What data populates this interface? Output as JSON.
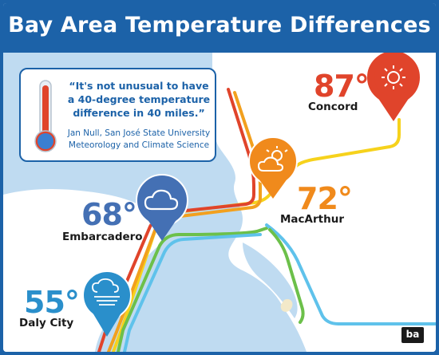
{
  "title": "Bay Area Temperature Differences",
  "quote": {
    "text": "“It's not unusual to have a 40-degree temperature difference in 40 miles.”",
    "source_line1": "Jan Null, San José State University",
    "source_line2": "Meteorology and Climate Science"
  },
  "stations": [
    {
      "name": "Concord",
      "temp": "87°",
      "icon": "sun-icon",
      "color": "#e0442b"
    },
    {
      "name": "MacArthur",
      "temp": "72°",
      "icon": "partly-cloudy-icon",
      "color": "#f08a1c"
    },
    {
      "name": "Embarcadero",
      "temp": "68°",
      "icon": "cloud-icon",
      "color": "#4470b4"
    },
    {
      "name": "Daly City",
      "temp": "55°",
      "icon": "fog-icon",
      "color": "#2a8fcb"
    }
  ],
  "logo": {
    "text": "ba",
    "mark": "BART"
  },
  "colors": {
    "frame": "#1c62a8",
    "water": "#bfdbf1",
    "land": "#ffffff",
    "line_red": "#e0442b",
    "line_yellow": "#f6d21c",
    "line_orange": "#f2a01e",
    "line_green": "#6cc04a",
    "line_blue": "#5fc2eb"
  }
}
